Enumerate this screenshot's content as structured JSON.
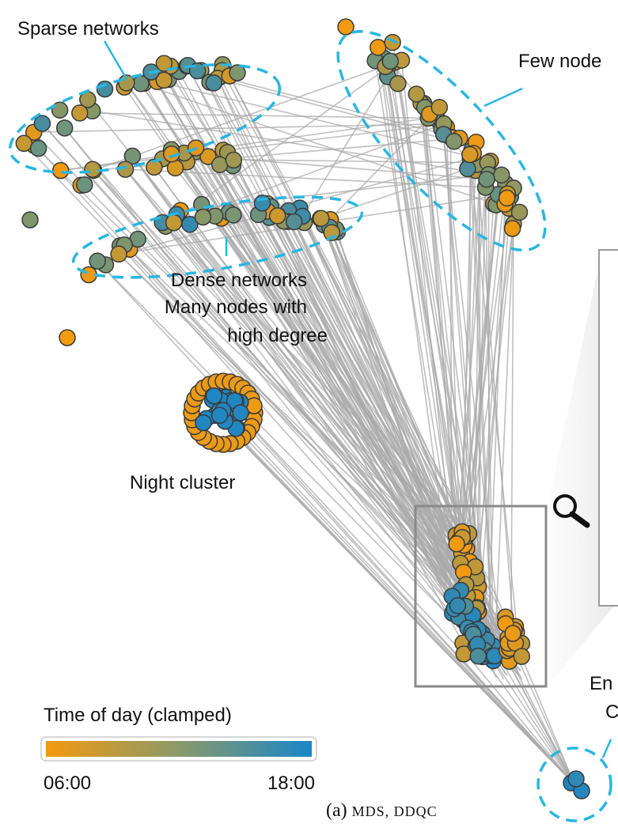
{
  "annotations": {
    "sparse": "Sparse networks",
    "few_nodes": "Few node",
    "dense_line1": "Dense networks",
    "dense_line2": "Many nodes with",
    "dense_line3": "high degree",
    "night": "Night cluster",
    "end_line1": "En",
    "end_line2": "C"
  },
  "legend": {
    "title": "Time of day (clamped)",
    "min_label": "06:00",
    "max_label": "18:00",
    "color_start": "#f29a10",
    "color_end": "#1a86c8"
  },
  "caption": {
    "prefix": "(a) ",
    "method": "MDS, DDQC"
  },
  "colors": {
    "edge": "#a9a9a9",
    "highlight_dash": "#29b6e0",
    "zoom_box": "#8a8a8a",
    "node_stroke": "#3a3a3a"
  },
  "icons": {
    "zoom": "magnifier-icon"
  }
}
